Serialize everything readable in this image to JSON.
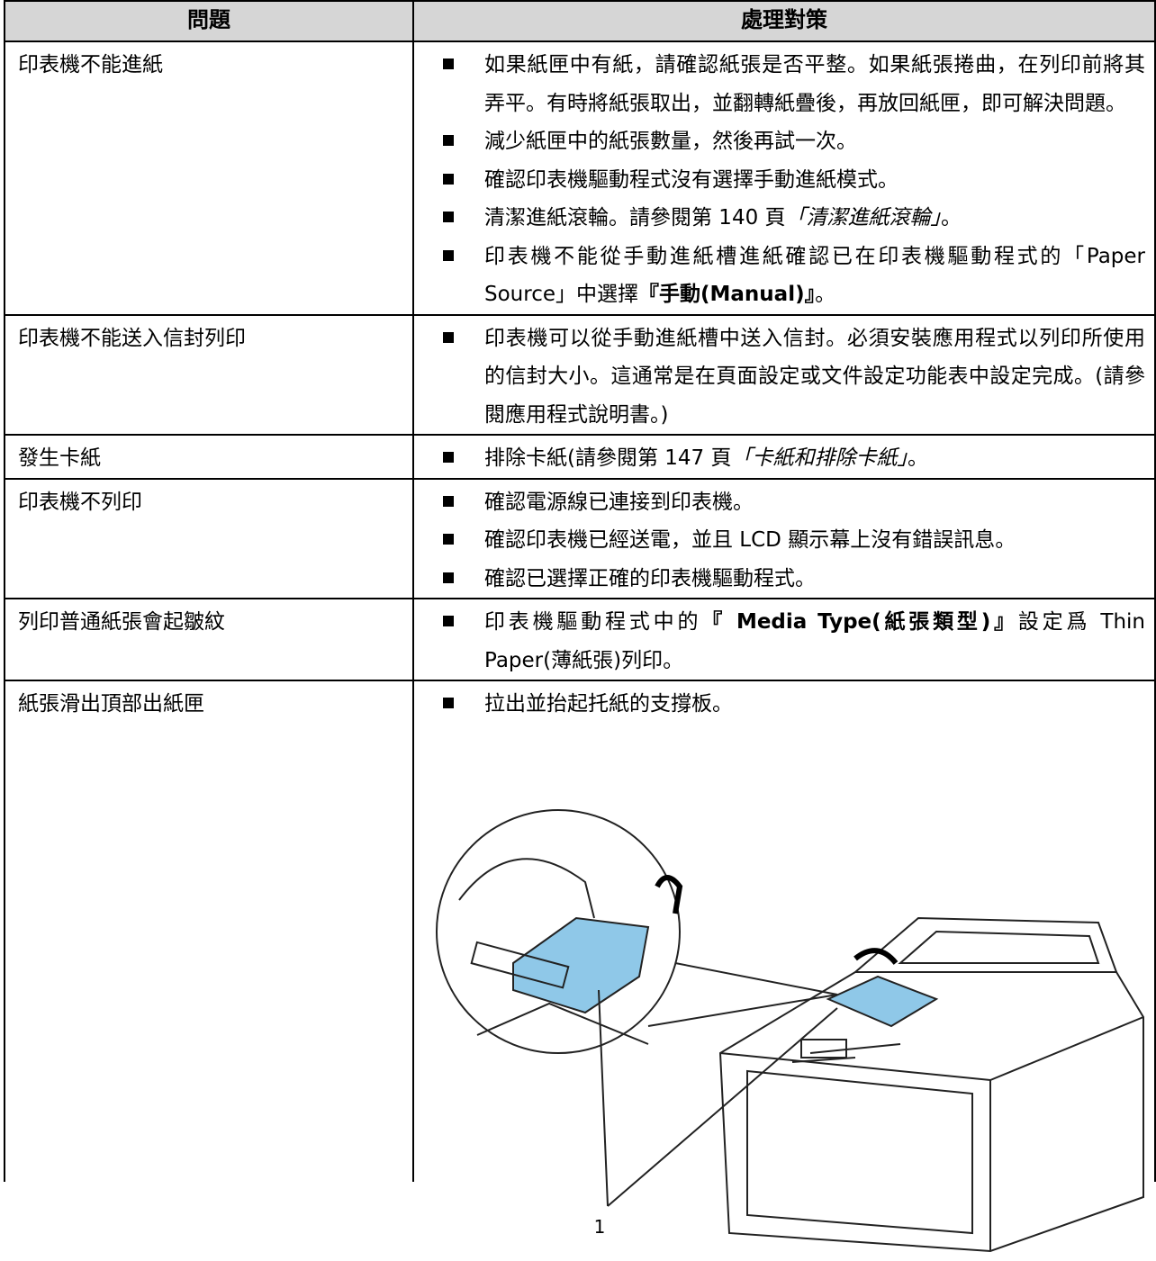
{
  "table": {
    "header": [
      "問題",
      "處理對策"
    ],
    "rows": [
      {
        "problem": "印表機不能進紙",
        "items": [
          [
            "如果紙匣中有紙，請確認紙張是否平整。如果紙張捲曲，在列印前將其弄平。有時將紙張取出，並翻轉紙疊後，再放回紙匣，即可解決問題。"
          ],
          [
            "減少紙匣中的紙張數量，然後再試一次。"
          ],
          [
            "確認印表機驅動程式沒有選擇手動進紙模式。"
          ],
          [
            "清潔進紙滾輪。請參閱第 140 頁",
            {
              "italic": "「清潔進紙滾輪」"
            },
            "。"
          ],
          [
            "印表機不能從手動進紙槽進紙確認已在印表機驅動程式的「Paper Source」中選擇",
            {
              "bold": "『手動(Manual)』"
            },
            "。"
          ]
        ]
      },
      {
        "problem": "印表機不能送入信封列印",
        "items": [
          [
            "印表機可以從手動進紙槽中送入信封。必須安裝應用程式以列印所使用的信封大小。這通常是在頁面設定或文件設定功能表中設定完成。(請參閱應用程式說明書。)"
          ]
        ]
      },
      {
        "problem": "發生卡紙",
        "items": [
          [
            "排除卡紙(請參閱第 147 頁",
            {
              "italic": "「卡紙和排除卡紙」"
            },
            "。"
          ]
        ]
      },
      {
        "problem": "印表機不列印",
        "items": [
          [
            "確認電源線已連接到印表機。"
          ],
          [
            "確認印表機已經送電，並且 LCD 顯示幕上沒有錯誤訊息。"
          ],
          [
            "確認已選擇正確的印表機驅動程式。"
          ]
        ]
      },
      {
        "problem": "列印普通紙張會起皺紋",
        "items": [
          [
            "印表機驅動程式中的",
            {
              "bold": "『 Media Type(紙張類型)』"
            },
            "設定爲 Thin Paper(薄紙張)列印。"
          ]
        ]
      },
      {
        "problem": "紙張滑出頂部出紙匣",
        "items": [
          [
            "拉出並抬起托紙的支撐板。"
          ]
        ]
      }
    ]
  },
  "figure": {
    "callout": "1"
  }
}
